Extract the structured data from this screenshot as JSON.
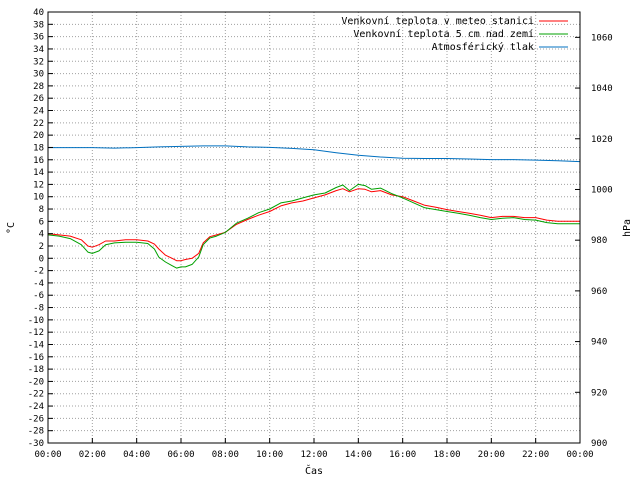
{
  "chart_data": {
    "type": "line",
    "xlabel": "Čas",
    "ylabel": "°C",
    "y2label": "hPa",
    "xlim": [
      0,
      24
    ],
    "ylim": [
      -30,
      40
    ],
    "y2lim": [
      900,
      1070
    ],
    "grid": true,
    "legend_position": "top-right",
    "x_ticks": [
      {
        "value": 0,
        "label": "00:00"
      },
      {
        "value": 2,
        "label": "02:00"
      },
      {
        "value": 4,
        "label": "04:00"
      },
      {
        "value": 6,
        "label": "06:00"
      },
      {
        "value": 8,
        "label": "08:00"
      },
      {
        "value": 10,
        "label": "10:00"
      },
      {
        "value": 12,
        "label": "12:00"
      },
      {
        "value": 14,
        "label": "14:00"
      },
      {
        "value": 16,
        "label": "16:00"
      },
      {
        "value": 18,
        "label": "18:00"
      },
      {
        "value": 20,
        "label": "20:00"
      },
      {
        "value": 22,
        "label": "22:00"
      },
      {
        "value": 24,
        "label": "00:00"
      }
    ],
    "y_ticks": [
      40,
      38,
      36,
      34,
      32,
      30,
      28,
      26,
      24,
      22,
      20,
      18,
      16,
      14,
      12,
      10,
      8,
      6,
      4,
      2,
      0,
      -2,
      -4,
      -6,
      -8,
      -10,
      -12,
      -14,
      -16,
      -18,
      -20,
      -22,
      -24,
      -26,
      -28,
      -30
    ],
    "y2_ticks": [
      900,
      920,
      940,
      960,
      980,
      1000,
      1020,
      1040,
      1060
    ],
    "series": [
      {
        "name": "Venkovní teplota v meteo stanici",
        "axis": "y",
        "color": "#ff0000",
        "x": [
          0,
          0.5,
          1,
          1.5,
          1.8,
          2,
          2.3,
          2.6,
          3,
          3.5,
          4,
          4.5,
          4.8,
          5,
          5.3,
          5.6,
          5.8,
          6,
          6.2,
          6.5,
          6.8,
          7,
          7.3,
          7.6,
          8,
          8.5,
          9,
          9.5,
          10,
          10.5,
          11,
          11.5,
          12,
          12.5,
          13,
          13.3,
          13.6,
          14,
          14.3,
          14.6,
          15,
          15.5,
          16,
          16.5,
          17,
          17.5,
          18,
          18.5,
          19,
          19.5,
          20,
          20.5,
          21,
          21.5,
          22,
          22.5,
          23,
          23.5,
          24
        ],
        "y": [
          4,
          3.8,
          3.6,
          3,
          2,
          1.8,
          2.2,
          2.8,
          2.8,
          3,
          3,
          2.8,
          2.3,
          1.5,
          0.5,
          0,
          -0.4,
          -0.4,
          -0.2,
          0,
          0.8,
          2.5,
          3.5,
          3.8,
          4.2,
          5.5,
          6.3,
          7,
          7.6,
          8.5,
          9,
          9.3,
          9.8,
          10.3,
          11,
          11.3,
          10.8,
          11.3,
          11.2,
          10.8,
          11,
          10.3,
          10,
          9.3,
          8.6,
          8.3,
          7.9,
          7.6,
          7.3,
          7,
          6.6,
          6.8,
          6.8,
          6.6,
          6.6,
          6.2,
          6,
          6,
          6
        ]
      },
      {
        "name": "Venkovní teplota 5 cm nad zemí",
        "axis": "y",
        "color": "#00a000",
        "x": [
          0,
          0.5,
          1,
          1.5,
          1.8,
          2,
          2.3,
          2.6,
          3,
          3.5,
          4,
          4.5,
          4.8,
          5,
          5.3,
          5.6,
          5.8,
          6,
          6.2,
          6.5,
          6.8,
          7,
          7.3,
          7.6,
          8,
          8.5,
          9,
          9.5,
          10,
          10.5,
          11,
          11.5,
          12,
          12.5,
          13,
          13.3,
          13.6,
          14,
          14.3,
          14.6,
          15,
          15.5,
          16,
          16.5,
          17,
          17.5,
          18,
          18.5,
          19,
          19.5,
          20,
          20.5,
          21,
          21.5,
          22,
          22.5,
          23,
          23.5,
          24
        ],
        "y": [
          3.8,
          3.6,
          3.2,
          2.2,
          1,
          0.8,
          1.2,
          2.2,
          2.5,
          2.6,
          2.6,
          2.4,
          1.5,
          0.2,
          -0.6,
          -1.2,
          -1.6,
          -1.4,
          -1.4,
          -1,
          0.2,
          2.2,
          3.3,
          3.6,
          4.2,
          5.7,
          6.5,
          7.4,
          8,
          9,
          9.3,
          9.8,
          10.3,
          10.6,
          11.5,
          11.9,
          11,
          12,
          11.8,
          11.2,
          11.4,
          10.5,
          9.8,
          9,
          8.2,
          7.9,
          7.6,
          7.3,
          7,
          6.6,
          6.3,
          6.5,
          6.6,
          6.3,
          6.2,
          5.8,
          5.6,
          5.6,
          5.6
        ]
      },
      {
        "name": "Atmosférický tlak",
        "axis": "y2",
        "color": "#0070c0",
        "x": [
          0,
          1,
          2,
          3,
          4,
          5,
          6,
          7,
          8,
          9,
          10,
          11,
          12,
          13,
          14,
          15,
          16,
          17,
          18,
          19,
          20,
          21,
          22,
          23,
          24
        ],
        "y": [
          1016.5,
          1016.5,
          1016.5,
          1016.3,
          1016.5,
          1016.8,
          1017,
          1017.2,
          1017.2,
          1016.8,
          1016.6,
          1016.2,
          1015.7,
          1014.5,
          1013.5,
          1012.8,
          1012.3,
          1012.2,
          1012.2,
          1012,
          1011.8,
          1011.8,
          1011.6,
          1011.3,
          1011
        ]
      }
    ]
  }
}
